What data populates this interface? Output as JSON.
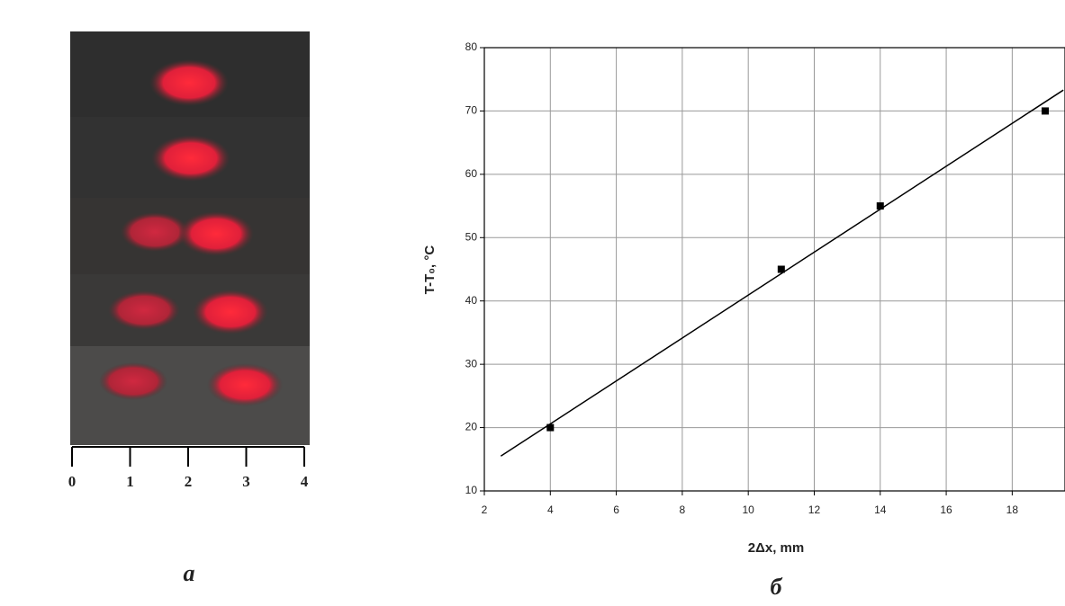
{
  "photo": {
    "xticks": [
      0,
      1,
      2,
      3,
      4
    ],
    "caption": "a"
  },
  "chart_data": {
    "type": "scatter",
    "caption": "б",
    "xlabel": "2Δx, mm",
    "ylabel": "T-T₀, °C",
    "x": [
      4,
      11,
      14,
      19
    ],
    "y": [
      20,
      45,
      55,
      70
    ],
    "color": "#000000",
    "fit_line": {
      "x": [
        2.5,
        19.55
      ],
      "y": [
        15.5,
        73.3
      ],
      "color": "#000000"
    },
    "xlim": [
      2,
      19.6
    ],
    "ylim": [
      10,
      80
    ],
    "xticks": [
      2,
      4,
      6,
      8,
      10,
      12,
      14,
      16,
      18
    ],
    "yticks": [
      10,
      20,
      30,
      40,
      50,
      60,
      70,
      80
    ],
    "grid": true
  }
}
